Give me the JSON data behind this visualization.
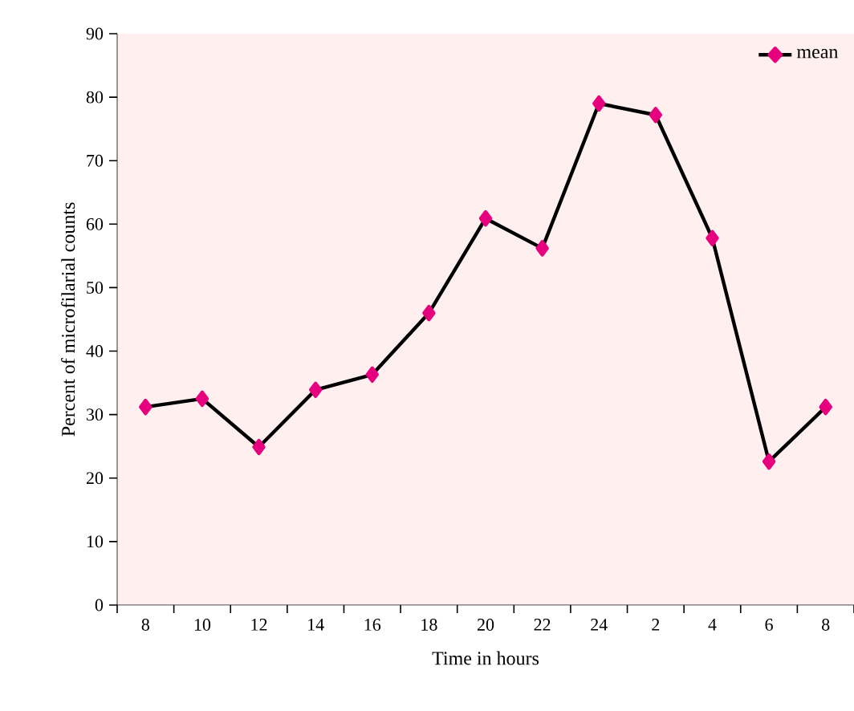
{
  "chart_data": {
    "type": "line",
    "xlabel": "Time in hours",
    "ylabel": "Percent of microfilarial counts",
    "categories": [
      "8",
      "10",
      "12",
      "14",
      "16",
      "18",
      "20",
      "22",
      "24",
      "2",
      "4",
      "6",
      "8"
    ],
    "series": [
      {
        "name": "mean",
        "color": "#e6007e",
        "values": [
          31.2,
          32.5,
          24.9,
          33.9,
          36.3,
          46.0,
          60.9,
          56.2,
          79.0,
          77.2,
          57.8,
          22.6,
          31.2
        ]
      }
    ],
    "ylim": [
      0,
      90
    ],
    "yticks": [
      0,
      10,
      20,
      30,
      40,
      50,
      60,
      70,
      80,
      90
    ],
    "grid": false,
    "legend": "top right",
    "marker": "diamond",
    "line_style": "solid"
  }
}
